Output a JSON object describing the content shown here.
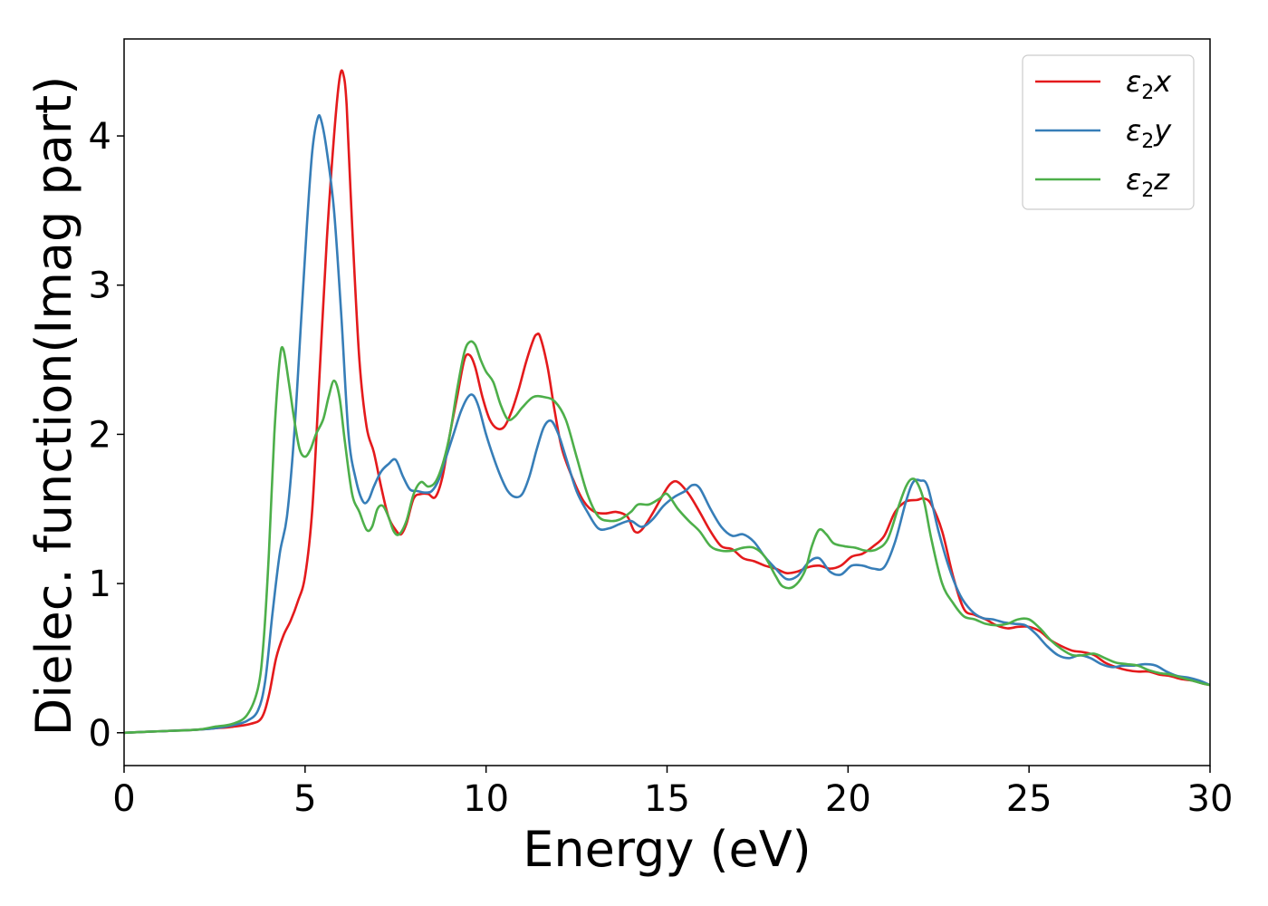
{
  "chart_data": {
    "type": "line",
    "title": "",
    "xlabel": "Energy (eV)",
    "ylabel": "Dielec. function(Imag part)",
    "xlim": [
      0,
      30
    ],
    "ylim": [
      -0.22,
      4.65
    ],
    "xticks": [
      0,
      5,
      10,
      15,
      20,
      25,
      30
    ],
    "xtick_labels": [
      "0",
      "5",
      "10",
      "15",
      "20",
      "25",
      "30"
    ],
    "yticks": [
      0,
      1,
      2,
      3,
      4
    ],
    "ytick_labels": [
      "0",
      "1",
      "2",
      "3",
      "4"
    ],
    "grid": false,
    "legend_position": "top-right",
    "series": [
      {
        "name": "ε2x",
        "legend_base": "ε",
        "legend_sub": "2",
        "legend_var": "x",
        "color": "#e41a1c",
        "x": [
          0,
          1,
          2,
          2.5,
          3,
          3.5,
          3.8,
          4.0,
          4.2,
          4.4,
          4.6,
          4.8,
          5.0,
          5.2,
          5.4,
          5.6,
          5.8,
          5.95,
          6.05,
          6.15,
          6.3,
          6.5,
          6.7,
          6.9,
          7.1,
          7.3,
          7.5,
          7.65,
          7.8,
          8.0,
          8.2,
          8.4,
          8.6,
          8.8,
          9.0,
          9.2,
          9.4,
          9.55,
          9.7,
          9.9,
          10.1,
          10.3,
          10.5,
          10.7,
          10.9,
          11.1,
          11.3,
          11.4,
          11.5,
          11.7,
          11.9,
          12.1,
          12.4,
          12.7,
          13.0,
          13.3,
          13.6,
          13.9,
          14.1,
          14.3,
          14.6,
          14.9,
          15.1,
          15.3,
          15.6,
          15.9,
          16.2,
          16.5,
          16.8,
          17.1,
          17.4,
          17.7,
          18.0,
          18.3,
          18.6,
          18.9,
          19.2,
          19.5,
          19.8,
          20.1,
          20.4,
          20.7,
          21.0,
          21.3,
          21.6,
          21.9,
          22.1,
          22.3,
          22.6,
          22.9,
          23.2,
          23.5,
          23.8,
          24.1,
          24.4,
          24.7,
          25.0,
          25.3,
          25.6,
          25.9,
          26.2,
          26.5,
          26.8,
          27.1,
          27.4,
          27.7,
          28.0,
          28.3,
          28.6,
          28.9,
          29.2,
          29.5,
          29.8,
          30.0
        ],
        "y": [
          0.0,
          0.01,
          0.02,
          0.03,
          0.04,
          0.06,
          0.1,
          0.25,
          0.5,
          0.65,
          0.75,
          0.88,
          1.05,
          1.5,
          2.4,
          3.3,
          4.0,
          4.38,
          4.42,
          4.2,
          3.4,
          2.5,
          2.05,
          1.88,
          1.65,
          1.45,
          1.36,
          1.33,
          1.4,
          1.57,
          1.6,
          1.6,
          1.58,
          1.72,
          2.0,
          2.25,
          2.5,
          2.53,
          2.45,
          2.25,
          2.1,
          2.04,
          2.05,
          2.15,
          2.3,
          2.48,
          2.63,
          2.67,
          2.65,
          2.45,
          2.15,
          1.9,
          1.7,
          1.55,
          1.48,
          1.47,
          1.48,
          1.45,
          1.35,
          1.36,
          1.47,
          1.6,
          1.67,
          1.68,
          1.6,
          1.48,
          1.35,
          1.25,
          1.23,
          1.17,
          1.15,
          1.12,
          1.1,
          1.07,
          1.08,
          1.11,
          1.12,
          1.1,
          1.12,
          1.18,
          1.2,
          1.25,
          1.32,
          1.48,
          1.55,
          1.56,
          1.57,
          1.53,
          1.35,
          1.05,
          0.83,
          0.79,
          0.76,
          0.72,
          0.7,
          0.71,
          0.71,
          0.68,
          0.62,
          0.58,
          0.55,
          0.54,
          0.52,
          0.47,
          0.44,
          0.42,
          0.41,
          0.41,
          0.39,
          0.38,
          0.36,
          0.35,
          0.33,
          0.32
        ]
      },
      {
        "name": "ε2y",
        "legend_base": "ε",
        "legend_sub": "2",
        "legend_var": "y",
        "color": "#377eb8",
        "x": [
          0,
          1,
          2,
          2.5,
          3,
          3.4,
          3.7,
          3.9,
          4.1,
          4.3,
          4.5,
          4.7,
          4.9,
          5.05,
          5.2,
          5.35,
          5.45,
          5.6,
          5.8,
          6.0,
          6.2,
          6.4,
          6.6,
          6.75,
          6.9,
          7.1,
          7.3,
          7.5,
          7.7,
          7.9,
          8.1,
          8.3,
          8.5,
          8.7,
          8.9,
          9.1,
          9.3,
          9.5,
          9.65,
          9.8,
          10.0,
          10.2,
          10.4,
          10.6,
          10.8,
          11.0,
          11.2,
          11.4,
          11.6,
          11.8,
          12.0,
          12.2,
          12.5,
          12.8,
          13.1,
          13.4,
          13.7,
          14.0,
          14.3,
          14.6,
          14.9,
          15.2,
          15.5,
          15.7,
          15.9,
          16.2,
          16.5,
          16.8,
          17.1,
          17.4,
          17.7,
          18.0,
          18.3,
          18.6,
          18.9,
          19.2,
          19.5,
          19.8,
          20.1,
          20.4,
          20.7,
          21.0,
          21.3,
          21.6,
          21.8,
          22.0,
          22.2,
          22.5,
          22.8,
          23.1,
          23.4,
          23.7,
          24.0,
          24.3,
          24.6,
          24.9,
          25.2,
          25.5,
          25.8,
          26.1,
          26.4,
          26.7,
          27.0,
          27.3,
          27.6,
          27.9,
          28.2,
          28.5,
          28.8,
          29.1,
          29.4,
          29.7,
          30.0
        ],
        "y": [
          0.0,
          0.01,
          0.02,
          0.03,
          0.05,
          0.08,
          0.15,
          0.35,
          0.8,
          1.2,
          1.45,
          2.0,
          2.8,
          3.4,
          3.9,
          4.12,
          4.1,
          3.9,
          3.5,
          2.8,
          2.0,
          1.7,
          1.55,
          1.56,
          1.65,
          1.75,
          1.8,
          1.83,
          1.72,
          1.63,
          1.62,
          1.61,
          1.62,
          1.7,
          1.85,
          2.0,
          2.15,
          2.25,
          2.26,
          2.18,
          2.0,
          1.85,
          1.72,
          1.62,
          1.58,
          1.6,
          1.72,
          1.9,
          2.05,
          2.09,
          2.0,
          1.85,
          1.62,
          1.48,
          1.37,
          1.37,
          1.4,
          1.42,
          1.38,
          1.43,
          1.52,
          1.58,
          1.62,
          1.66,
          1.64,
          1.5,
          1.38,
          1.32,
          1.33,
          1.28,
          1.18,
          1.1,
          1.03,
          1.05,
          1.14,
          1.17,
          1.08,
          1.06,
          1.12,
          1.12,
          1.1,
          1.11,
          1.28,
          1.55,
          1.68,
          1.69,
          1.65,
          1.35,
          1.1,
          0.92,
          0.82,
          0.77,
          0.76,
          0.74,
          0.73,
          0.72,
          0.66,
          0.58,
          0.52,
          0.5,
          0.52,
          0.5,
          0.46,
          0.44,
          0.45,
          0.45,
          0.46,
          0.45,
          0.41,
          0.38,
          0.37,
          0.35,
          0.32
        ]
      },
      {
        "name": "ε2z",
        "legend_base": "ε",
        "legend_sub": "2",
        "legend_var": "z",
        "color": "#4daf4a",
        "x": [
          0,
          1,
          2,
          2.5,
          3,
          3.4,
          3.7,
          3.85,
          4.0,
          4.15,
          4.3,
          4.4,
          4.55,
          4.7,
          4.85,
          5.0,
          5.15,
          5.3,
          5.5,
          5.65,
          5.8,
          5.95,
          6.1,
          6.3,
          6.5,
          6.7,
          6.85,
          7.0,
          7.15,
          7.3,
          7.45,
          7.6,
          7.8,
          8.0,
          8.2,
          8.4,
          8.6,
          8.8,
          9.0,
          9.2,
          9.4,
          9.55,
          9.7,
          9.85,
          10.0,
          10.2,
          10.4,
          10.6,
          10.8,
          11.0,
          11.3,
          11.6,
          11.9,
          12.2,
          12.5,
          12.8,
          13.1,
          13.4,
          13.7,
          14.0,
          14.2,
          14.5,
          14.8,
          15.0,
          15.3,
          15.6,
          15.9,
          16.2,
          16.5,
          16.8,
          17.1,
          17.4,
          17.7,
          18.0,
          18.2,
          18.5,
          18.8,
          19.0,
          19.2,
          19.4,
          19.6,
          19.9,
          20.2,
          20.5,
          20.8,
          21.1,
          21.4,
          21.6,
          21.75,
          21.9,
          22.1,
          22.3,
          22.6,
          22.9,
          23.2,
          23.5,
          23.8,
          24.1,
          24.4,
          24.7,
          25.0,
          25.3,
          25.6,
          25.9,
          26.2,
          26.5,
          26.8,
          27.1,
          27.4,
          27.7,
          28.0,
          28.3,
          28.6,
          28.9,
          29.2,
          29.5,
          29.8,
          30.0
        ],
        "y": [
          0.0,
          0.01,
          0.02,
          0.04,
          0.06,
          0.12,
          0.3,
          0.6,
          1.2,
          2.0,
          2.5,
          2.57,
          2.35,
          2.1,
          1.9,
          1.85,
          1.9,
          2.0,
          2.1,
          2.25,
          2.36,
          2.25,
          1.95,
          1.6,
          1.48,
          1.36,
          1.38,
          1.5,
          1.52,
          1.45,
          1.35,
          1.33,
          1.42,
          1.6,
          1.68,
          1.65,
          1.68,
          1.8,
          2.0,
          2.3,
          2.55,
          2.62,
          2.6,
          2.5,
          2.42,
          2.35,
          2.2,
          2.1,
          2.12,
          2.18,
          2.25,
          2.25,
          2.22,
          2.1,
          1.85,
          1.6,
          1.45,
          1.42,
          1.43,
          1.48,
          1.53,
          1.53,
          1.57,
          1.6,
          1.5,
          1.42,
          1.35,
          1.25,
          1.22,
          1.22,
          1.24,
          1.24,
          1.18,
          1.05,
          0.98,
          0.98,
          1.08,
          1.25,
          1.36,
          1.33,
          1.27,
          1.25,
          1.24,
          1.22,
          1.23,
          1.3,
          1.52,
          1.65,
          1.7,
          1.68,
          1.55,
          1.3,
          1.0,
          0.87,
          0.78,
          0.76,
          0.73,
          0.72,
          0.73,
          0.76,
          0.76,
          0.7,
          0.62,
          0.56,
          0.52,
          0.52,
          0.53,
          0.5,
          0.47,
          0.46,
          0.45,
          0.42,
          0.4,
          0.39,
          0.37,
          0.35,
          0.33,
          0.32
        ]
      }
    ]
  }
}
